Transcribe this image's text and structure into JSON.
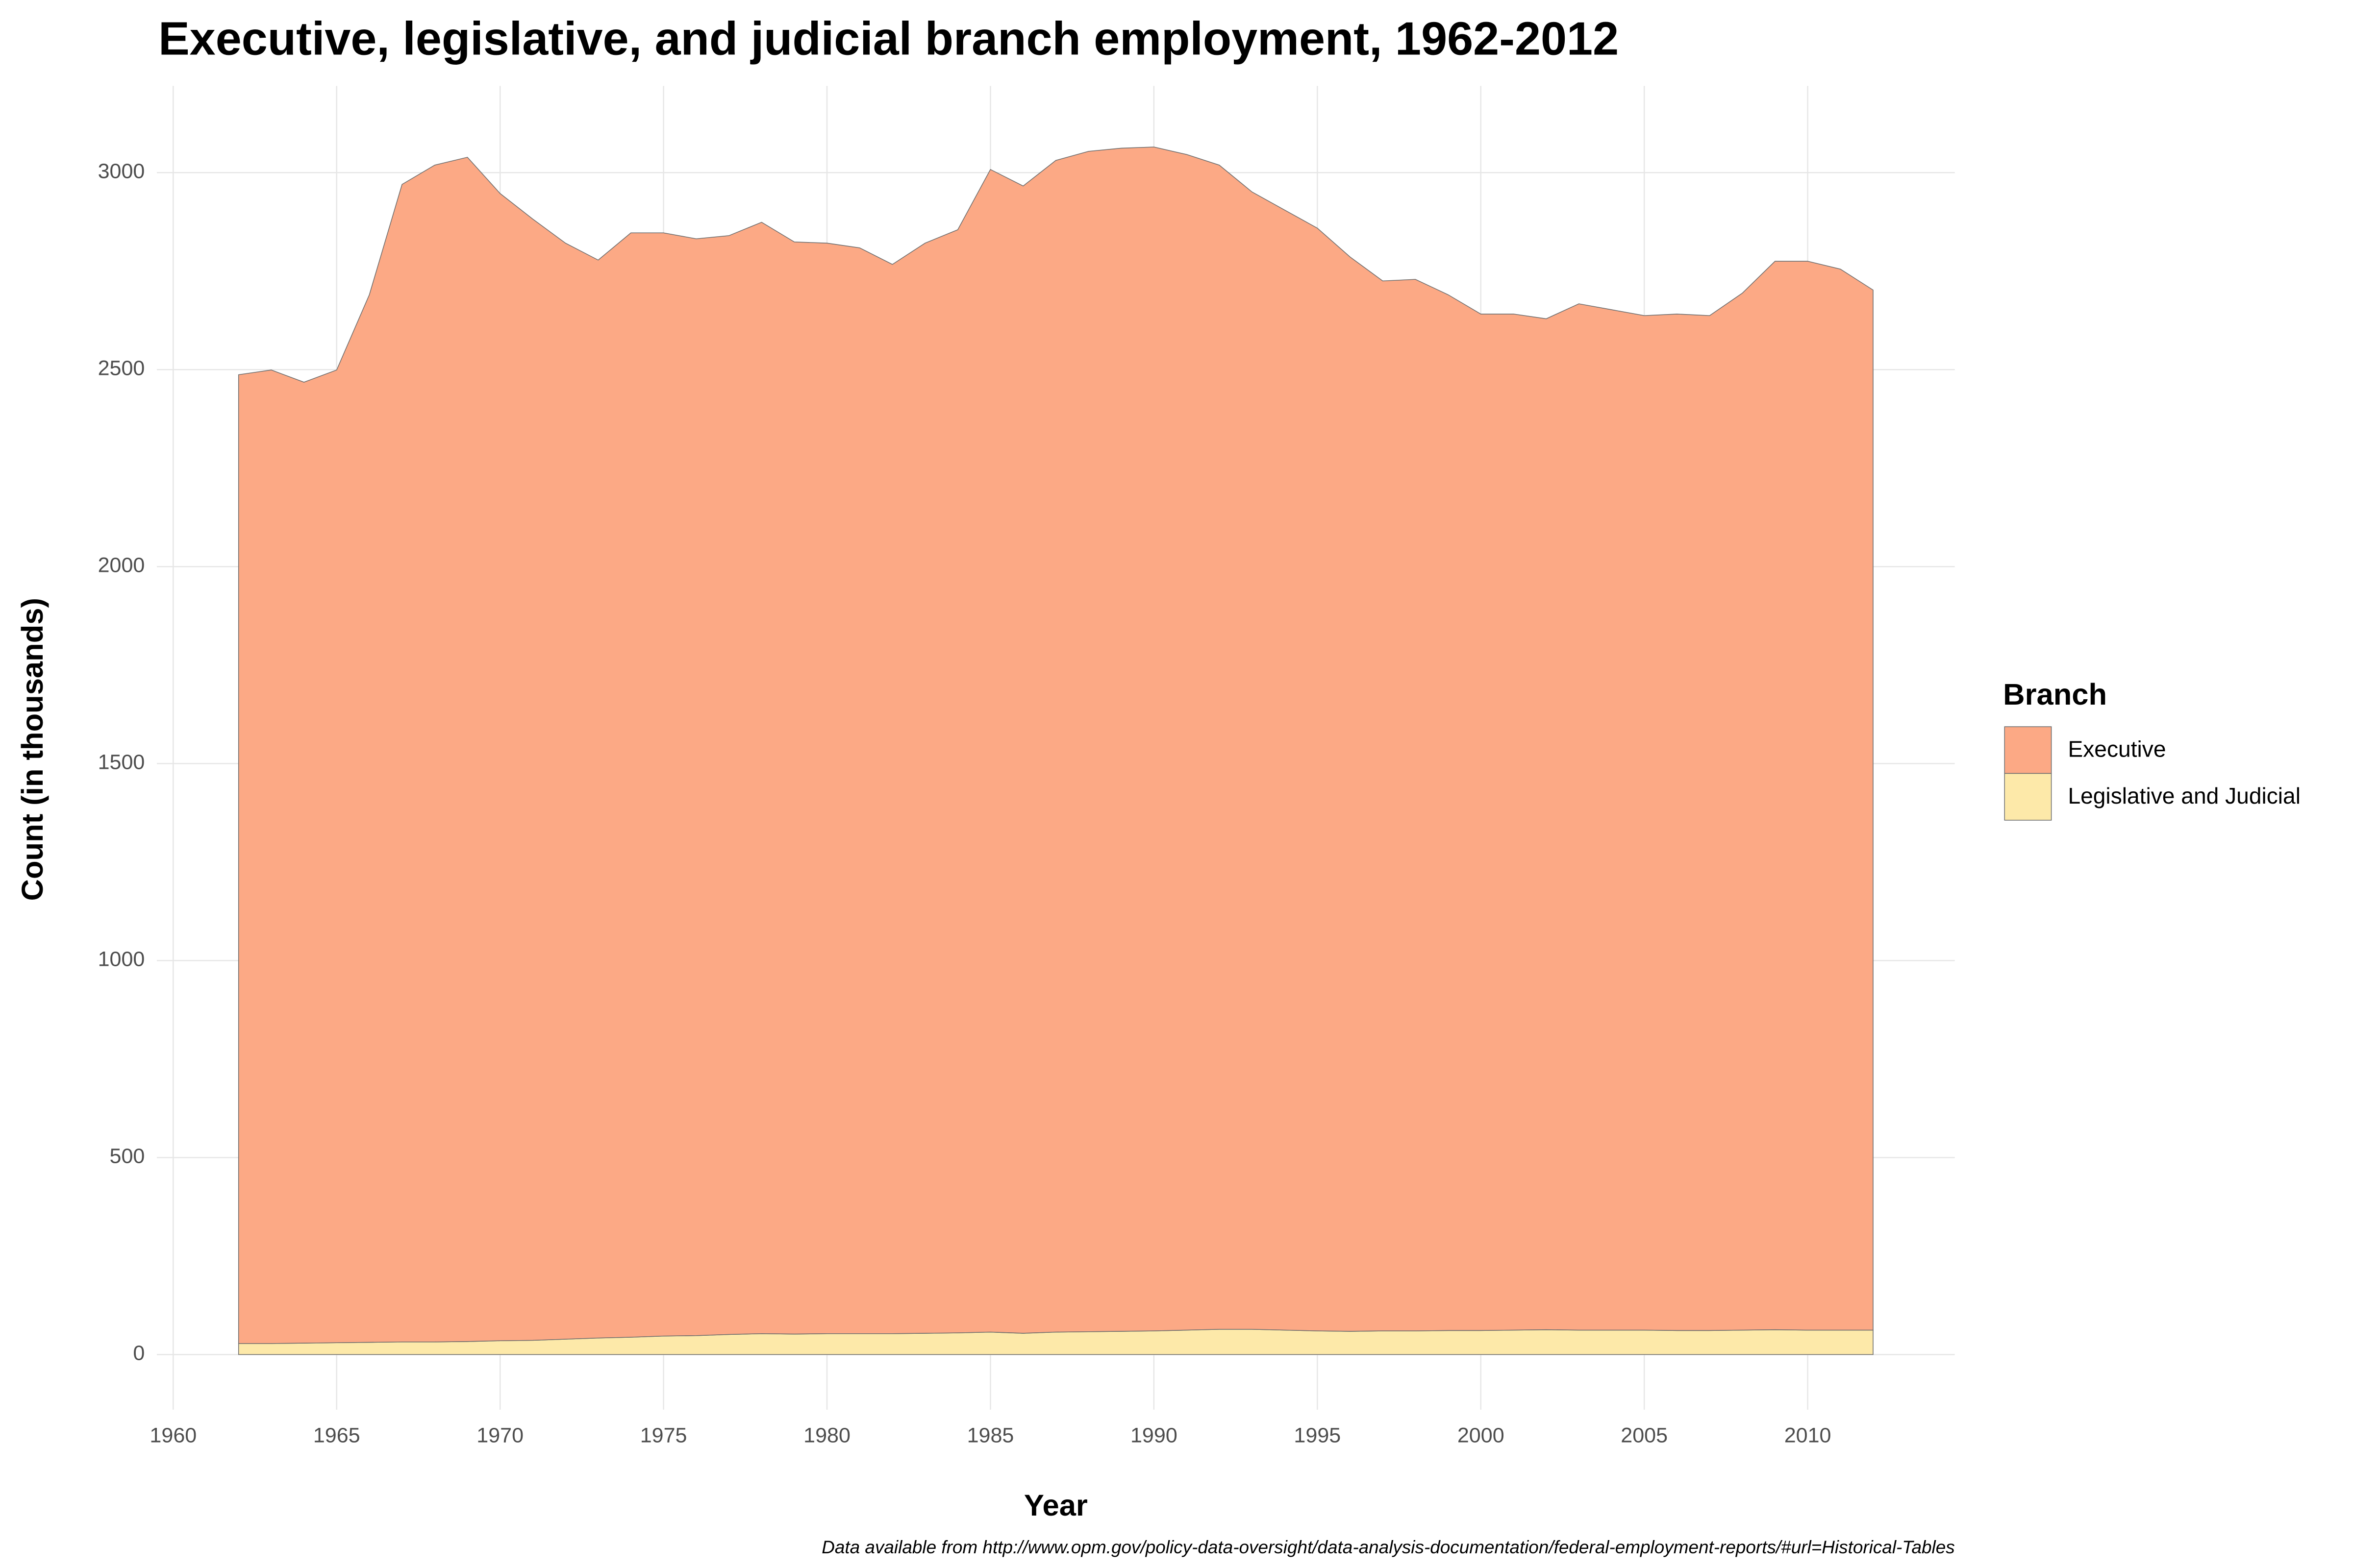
{
  "chart_data": {
    "type": "area",
    "stacked": true,
    "title": "Executive, legislative, and judicial branch employment, 1962-2012",
    "x_label": "Year",
    "y_label": "Count (in thousands)",
    "legend_title": "Branch",
    "legend_position": "right",
    "caption": "Data available from http://www.opm.gov/policy-data-oversight/data-analysis-documentation/federal-employment-reports/#url=Historical-Tables",
    "x": [
      1962,
      1963,
      1964,
      1965,
      1966,
      1967,
      1968,
      1969,
      1970,
      1971,
      1972,
      1973,
      1974,
      1975,
      1976,
      1977,
      1978,
      1979,
      1980,
      1981,
      1982,
      1983,
      1984,
      1985,
      1986,
      1987,
      1988,
      1989,
      1990,
      1991,
      1992,
      1993,
      1994,
      1995,
      1996,
      1997,
      1998,
      1999,
      2000,
      2001,
      2002,
      2003,
      2004,
      2005,
      2006,
      2007,
      2008,
      2009,
      2010,
      2011,
      2012
    ],
    "series": [
      {
        "name": "Executive",
        "color": "#fca985",
        "values": [
          2459,
          2471,
          2439,
          2469,
          2659,
          2938,
          2987,
          3006,
          2912,
          2846,
          2782,
          2736,
          2803,
          2800,
          2784,
          2789,
          2821,
          2772,
          2768,
          2756,
          2714,
          2767,
          2800,
          2951,
          2912,
          2974,
          2996,
          3003,
          3005,
          2984,
          2955,
          2887,
          2843,
          2799,
          2727,
          2665,
          2669,
          2629,
          2580,
          2579,
          2566,
          2605,
          2590,
          2575,
          2580,
          2576,
          2632,
          2712,
          2713,
          2693,
          2640
        ]
      },
      {
        "name": "Legislative and Judicial",
        "color": "#fde9a9",
        "values": [
          28,
          28,
          29,
          30,
          31,
          32,
          32,
          33,
          35,
          36,
          39,
          42,
          44,
          47,
          48,
          51,
          53,
          52,
          53,
          53,
          53,
          54,
          55,
          57,
          54,
          57,
          58,
          59,
          60,
          62,
          64,
          64,
          62,
          60,
          59,
          60,
          60,
          61,
          61,
          62,
          63,
          62,
          62,
          62,
          61,
          61,
          62,
          63,
          62,
          62,
          62
        ]
      }
    ],
    "xlim": [
      1959.5,
      2014.5
    ],
    "xticks": [
      1960,
      1965,
      1970,
      1975,
      1980,
      1985,
      1990,
      1995,
      2000,
      2005,
      2010
    ],
    "ylim": [
      -140,
      3220
    ],
    "yticks": [
      0,
      500,
      1000,
      1500,
      2000,
      2500,
      3000
    ],
    "grid": true
  }
}
